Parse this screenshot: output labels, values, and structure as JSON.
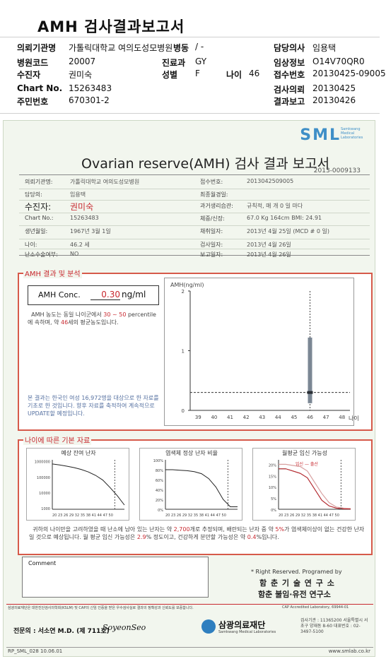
{
  "header": {
    "title": "AMH 검사결과보고서",
    "rows": [
      [
        {
          "l": "의뢰기관명",
          "v": "가톨릭대학교 여의도성모병원"
        },
        {
          "l": "",
          "v": "/ -"
        },
        {
          "l": "담당의사",
          "v": "임용택"
        }
      ],
      [
        {
          "l": "병원코드",
          "v": "20007"
        },
        {
          "l": "진료과",
          "v": "GY"
        },
        {
          "l": "임상정보",
          "v": "O14V70QR0"
        }
      ],
      [
        {
          "l": "수진자",
          "v": "권미숙"
        },
        {
          "l": "성별",
          "v": "F"
        },
        {
          "l": "나이",
          "v": "46"
        },
        {
          "l": "접수번호",
          "v": "20130425-09005"
        }
      ],
      [
        {
          "l": "Chart No.",
          "v": "15263483"
        },
        {
          "l": "검사의뢰",
          "v": "20130425"
        }
      ],
      [
        {
          "l": "주민번호",
          "v": "670301-2"
        },
        {
          "l": "결과보고",
          "v": "20130426"
        }
      ]
    ],
    "ward_label": "병동"
  },
  "report": {
    "logo": "SML",
    "logo_sub": "Samkwang Medical Laboratories",
    "title": "Ovarian reserve(AMH) 검사 결과 보고서",
    "doc_no": "2013-0009133",
    "left": [
      {
        "l": "의뢰기관명:",
        "v": "가톨릭대학교 여의도성모병원"
      },
      {
        "l": "담당의:",
        "v": "임용택"
      },
      {
        "l": "수진자:",
        "v": "권미숙"
      },
      {
        "l": "Chart No.:",
        "v": "15263483"
      },
      {
        "l": "생년월일:",
        "v": "1967년 3월 1일"
      },
      {
        "l": "나이:",
        "v": "46.2 세"
      },
      {
        "l": "난소수술여부:",
        "v": "NO"
      }
    ],
    "right": [
      {
        "l": "접수번호:",
        "v": "2013042509005"
      },
      {
        "l": "최종월경일:",
        "v": ""
      },
      {
        "l": "과거생리습관:",
        "v": "규칙적, 매 개  0 일 마다"
      },
      {
        "l": "체중/신장:",
        "v": "67.0 Kg   164cm    BMI: 24.91"
      },
      {
        "l": "채취일자:",
        "v": "2013년 4월 25일   (MCD #  0 일)"
      },
      {
        "l": "검사일자:",
        "v": "2013년 4월 26일"
      },
      {
        "l": "보고일자:",
        "v": "2013년 4월 26일"
      }
    ],
    "amh_section_title": "AMH 결과 및 분석",
    "amh_label": "AMH Conc.",
    "amh_value": "0.30",
    "amh_unit": "ng/ml",
    "amh_text_1": "AMH 농도는 동일 나이군에서",
    "amh_range": "30 ~ 50",
    "amh_text_2": "percentile에 속하며, 약",
    "amh_equiv": "46",
    "amh_text_3": "세의 평균농도입니다.",
    "amh_note": "본 결과는 한국인 여성 16,972명을 대상으로 한 자료를 기초로 한 것입니다. 향후 자료를 축적하여 계속적으로 UPDATE할 예정입니다.",
    "age_section_title": "나이에 따른 기본 자료",
    "mini_titles": [
      "예상 잔여 난자",
      "염색체 정상 난자 비율",
      "월평균 임신 가능성"
    ],
    "mini3_legend": "임신 — 출산",
    "summary_1": "귀하의 나이만을 고려하였을 때 난소에 남아 있는 난자는 약",
    "eggs": "2,700",
    "summary_2": "개로 추정되며, 배란되는 난자 중 약",
    "normal_pct": "5%",
    "summary_3": "가 염색체이상이 없는 건강한 난자일 것으로 예상됩니다. 월 평균 임신 가능성은",
    "preg_pct": "2.9",
    "summary_4": "% 정도이고, 건강하게 분만할 가능성은 약",
    "birth_pct": "0.4",
    "summary_5": "%입니다.",
    "comment_label": "Comment",
    "rights": "* Right Reserved. Programed by",
    "lab1": "함 춘 기 술 연 구 소",
    "lab2": "함춘 불임·유전 연구소",
    "accredit_left": "삼광의료재단은 대한진단검사의학회(KSLM) 및 CAP의 신임 인증을 받은 우수검사실로 결과의 정확성과 신뢰도를 보증합니다.",
    "accredit_right": "CAP Accredited Laboratory, 69944-01",
    "doctor": "전문의 : 서소연 M.D. (제 711호)",
    "signature": "SoyeonSeo",
    "foundation": "삼광의료재단",
    "foundation_en": "Samkwang Medical Laboratories",
    "contact": "검사기관 : 11365200  서울특별시 서초구 양재동 8-60  대표번호 : 02-3497-5100",
    "form_code": "RP_SML_028 10.06.01",
    "website": "www.smlab.co.kr"
  },
  "chart_data": [
    {
      "type": "scatter",
      "title": "",
      "ylabel": "AMH(ng/ml)",
      "xlabel": "나이",
      "ylim": [
        0,
        2
      ],
      "yticks": [
        0,
        1,
        2
      ],
      "categories": [
        "39",
        "40",
        "41",
        "42",
        "43",
        "44",
        "45",
        "46",
        "47",
        "48"
      ],
      "series": [
        {
          "name": "",
          "points": [
            {
              "x": "46",
              "y": 0.3
            }
          ]
        }
      ],
      "band": {
        "x": "46",
        "low": 0.12,
        "high": 1.22
      },
      "ref_line_y": 0.3
    },
    {
      "type": "line",
      "title": "예상 잔여 난자",
      "ylog": true,
      "yticks": [
        1000,
        10000,
        100000,
        1000000
      ],
      "ytick_labels": [
        "1000",
        "10000",
        "100000",
        "1000000"
      ],
      "x": [
        20,
        23,
        26,
        29,
        32,
        35,
        38,
        41,
        44,
        47,
        50
      ],
      "series": [
        {
          "name": "",
          "values": [
            650000,
            560000,
            470000,
            380000,
            290000,
            200000,
            120000,
            60000,
            20000,
            6000,
            1500
          ]
        }
      ],
      "marker_x": 46
    },
    {
      "type": "line",
      "title": "염색체 정상 난자 비율",
      "ytick_labels": [
        "0%",
        "20%",
        "40%",
        "60%",
        "80%",
        "100%"
      ],
      "ylim": [
        0,
        100
      ],
      "x": [
        20,
        23,
        26,
        29,
        32,
        35,
        38,
        41,
        44,
        47,
        50
      ],
      "series": [
        {
          "name": "",
          "values": [
            80,
            80,
            79,
            78,
            76,
            72,
            62,
            45,
            20,
            5,
            5
          ]
        }
      ],
      "marker_x": 46
    },
    {
      "type": "line",
      "title": "월평균 임신 가능성",
      "ytick_labels": [
        "0%",
        "5%",
        "10%",
        "15%",
        "20%"
      ],
      "ylim": [
        0,
        22
      ],
      "x": [
        20,
        23,
        26,
        29,
        32,
        35,
        38,
        41,
        44,
        47,
        50
      ],
      "series": [
        {
          "name": "임신",
          "values": [
            20,
            20,
            19.5,
            19,
            17,
            12,
            7,
            3,
            1,
            0.5,
            0.3
          ]
        },
        {
          "name": "출산",
          "values": [
            18,
            18,
            17,
            16,
            14,
            9,
            4,
            1.5,
            0.5,
            0.2,
            0.1
          ]
        }
      ],
      "marker_x": 46
    }
  ],
  "x_tick_labels": "20 23 26 29 32 35 38 41 44 47 50"
}
